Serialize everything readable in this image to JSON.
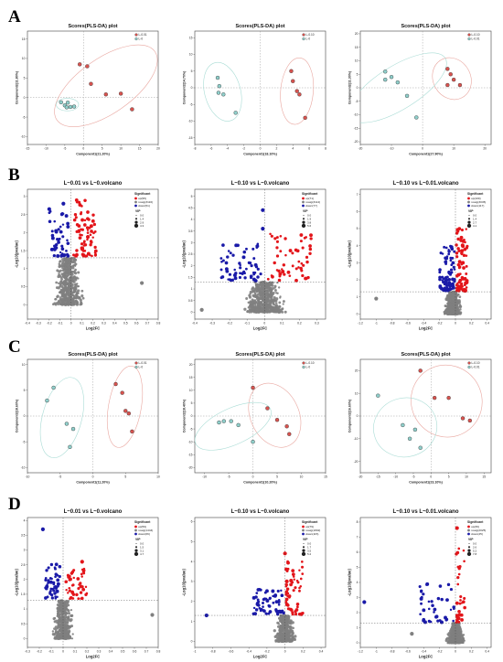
{
  "panel_letters": [
    "A",
    "B",
    "C",
    "D"
  ],
  "colors": {
    "red": "#d9534f",
    "teal": "#8fcfcb",
    "red_sig": "#e3151a",
    "blue_sig": "#1a1aa8",
    "gray": "#808080",
    "ellipse_red": "#e9a7a0",
    "ellipse_teal": "#a9dcd5"
  },
  "chart_data": [
    {
      "id": "A1",
      "type": "scatter",
      "title": "Scores(PLS-DA) plot",
      "xlabel": "Component1(21.20%)",
      "ylabel": "Component2(11.80%)",
      "xticks": [
        -15,
        -10,
        -5,
        0,
        5,
        10,
        15,
        20
      ],
      "yticks": [
        -10,
        -5,
        0,
        5,
        10,
        15
      ],
      "xlim": [
        -15,
        20
      ],
      "ylim": [
        -12,
        17
      ],
      "legend": [
        "L-0.01",
        "L-0"
      ],
      "legend_position": "top-right",
      "series": [
        {
          "name": "L-0.01",
          "color": "red",
          "points": [
            [
              -1,
              8.5
            ],
            [
              1,
              8
            ],
            [
              2,
              3.5
            ],
            [
              6,
              0.8
            ],
            [
              10,
              1
            ],
            [
              13,
              -3
            ]
          ],
          "ellipse": [
            6,
            3,
            16,
            7,
            -35
          ]
        },
        {
          "name": "L-0",
          "color": "teal",
          "points": [
            [
              -6,
              -1.2
            ],
            [
              -5,
              -2
            ],
            [
              -4.2,
              -1.3
            ],
            [
              -3.5,
              -2.4
            ],
            [
              -2.5,
              -2.3
            ],
            [
              -4.5,
              -2.5
            ]
          ],
          "ellipse": [
            -4.3,
            -1.8,
            3,
            1.6,
            0
          ]
        }
      ]
    },
    {
      "id": "A2",
      "type": "scatter",
      "title": "Scores(PLS-DA) plot",
      "xlabel": "Component1(18.10%)",
      "ylabel": "Component2(14.70%)",
      "xticks": [
        -8,
        -6,
        -4,
        -2,
        0,
        2,
        4,
        6,
        8
      ],
      "yticks": [
        -15,
        -10,
        -5,
        0,
        5,
        10,
        15
      ],
      "xlim": [
        -8,
        8
      ],
      "ylim": [
        -17,
        17
      ],
      "legend": [
        "L-0.10",
        "L-0"
      ],
      "legend_position": "top-right",
      "series": [
        {
          "name": "L-0.10",
          "color": "red",
          "points": [
            [
              3.8,
              5
            ],
            [
              4,
              2
            ],
            [
              4.5,
              -1
            ],
            [
              4.8,
              -2
            ],
            [
              5.5,
              -9
            ]
          ],
          "ellipse": [
            4.5,
            -1,
            2,
            10,
            5
          ]
        },
        {
          "name": "L-0",
          "color": "teal",
          "points": [
            [
              -5.2,
              3
            ],
            [
              -5,
              0.5
            ],
            [
              -5.1,
              -1.5
            ],
            [
              -4.5,
              -2
            ],
            [
              -3,
              -7.5
            ]
          ],
          "ellipse": [
            -4.6,
            -1.2,
            2.2,
            9,
            -15
          ]
        }
      ]
    },
    {
      "id": "A3",
      "type": "scatter",
      "title": "Scores(PLS-DA) plot",
      "xlabel": "Component1(27.90%)",
      "ylabel": "Component2(11.30%)",
      "xticks": [
        -20,
        -10,
        0,
        10,
        20
      ],
      "yticks": [
        -20,
        -15,
        -10,
        -5,
        0,
        5,
        10,
        15,
        20
      ],
      "xlim": [
        -20,
        22
      ],
      "ylim": [
        -21,
        21
      ],
      "legend": [
        "L-0.10",
        "L-0.01"
      ],
      "legend_position": "top-right",
      "series": [
        {
          "name": "L-0.10",
          "color": "red",
          "points": [
            [
              8,
              7
            ],
            [
              9,
              5
            ],
            [
              10,
              3
            ],
            [
              12,
              1
            ],
            [
              8,
              1
            ]
          ],
          "ellipse": [
            9.4,
            3.4,
            6,
            8,
            -30
          ]
        },
        {
          "name": "L-0.01",
          "color": "teal",
          "points": [
            [
              -12,
              6
            ],
            [
              -10,
              4
            ],
            [
              -8,
              2
            ],
            [
              -5,
              -3
            ],
            [
              -2,
              -11
            ],
            [
              -12,
              3
            ]
          ],
          "ellipse": [
            -8,
            0,
            18,
            8,
            -32
          ]
        }
      ]
    },
    {
      "id": "B1",
      "type": "scatter",
      "title": "L~0.01 vs L~0.volcano",
      "xlabel": "Log2FC",
      "ylabel": "-Log10(pvalue)",
      "xticks": [
        -0.4,
        -0.3,
        -0.2,
        -0.1,
        0,
        0.1,
        0.2,
        0.3,
        0.4,
        0.5,
        0.6,
        0.7,
        0.8
      ],
      "yticks": [
        0,
        0.5,
        1,
        1.5,
        2,
        2.5,
        3
      ],
      "xlim": [
        -0.4,
        0.8
      ],
      "ylim": [
        -0.4,
        3.2
      ],
      "hline": 1.3,
      "vline": 0,
      "legend_title": "Significant",
      "legend": [
        "up(95)",
        "nosig(3116)",
        "down(51)"
      ],
      "vip_title": "VIP",
      "vip": [
        "0.0",
        "1.4",
        "2.9",
        "4.3"
      ],
      "sig_up": {
        "n": 75,
        "x": [
          0.02,
          0.23
        ],
        "y": [
          1.35,
          2.9
        ]
      },
      "sig_down": {
        "n": 45,
        "x": [
          -0.2,
          -0.02
        ],
        "y": [
          1.35,
          2.6
        ]
      },
      "nonsig": {
        "n": 520,
        "x": [
          -0.25,
          0.2
        ],
        "ymax": 1.3
      },
      "outliers": [
        [
          0.65,
          0.6
        ],
        [
          -0.2,
          2.65
        ],
        [
          -0.07,
          2.8
        ]
      ]
    },
    {
      "id": "B2",
      "type": "scatter",
      "title": "L~0.10 vs L~0.volcano",
      "xlabel": "Log2FC",
      "ylabel": "-Log10(pvalue)",
      "xticks": [
        -0.4,
        -0.3,
        -0.2,
        -0.1,
        0,
        0.1,
        0.2,
        0.3
      ],
      "yticks": [
        0,
        0.5,
        1,
        1.5,
        2,
        2.5,
        3,
        3.5,
        4,
        4.5,
        5
      ],
      "xlim": [
        -0.4,
        0.35
      ],
      "ylim": [
        -0.3,
        5.3
      ],
      "hline": 1.3,
      "vline": 0,
      "legend_title": "Significant",
      "legend": [
        "up(71)",
        "nosig(3114)",
        "down(77)"
      ],
      "vip_title": "VIP",
      "vip": [
        "0.0",
        "1.9",
        "3.8",
        "5.6"
      ],
      "sig_up": {
        "n": 55,
        "x": [
          0.02,
          0.27
        ],
        "y": [
          1.35,
          3.4
        ]
      },
      "sig_down": {
        "n": 60,
        "x": [
          -0.25,
          -0.02
        ],
        "y": [
          1.35,
          3.0
        ]
      },
      "nonsig": {
        "n": 520,
        "x": [
          -0.2,
          0.2
        ],
        "ymax": 1.3
      },
      "outliers": [
        [
          -0.01,
          4.4
        ],
        [
          -0.01,
          3.6
        ],
        [
          -0.36,
          0.1
        ]
      ]
    },
    {
      "id": "B3",
      "type": "scatter",
      "title": "L~0.10 vs L~0.01.volcano",
      "xlabel": "Log2FC",
      "ylabel": "-Log10(pvalue)",
      "xticks": [
        -1.2,
        -1,
        -0.8,
        -0.6,
        -0.4,
        -0.2,
        0,
        0.2,
        0.4
      ],
      "yticks": [
        0,
        1,
        2,
        3,
        4,
        5,
        6,
        7
      ],
      "xlim": [
        -1.2,
        0.45
      ],
      "ylim": [
        -0.3,
        7.3
      ],
      "hline": 1.3,
      "vline": 0,
      "legend_title": "Significant",
      "legend": [
        "up(100)",
        "nosig(3045)",
        "down(117)"
      ],
      "vip_title": "VIP",
      "vip": [
        "0.0",
        "1.4",
        "2.7",
        "4.1"
      ],
      "sig_up": {
        "n": 75,
        "x": [
          0.01,
          0.15
        ],
        "y": [
          1.35,
          5.0
        ]
      },
      "sig_down": {
        "n": 80,
        "x": [
          -0.2,
          -0.01
        ],
        "y": [
          1.35,
          4.0
        ]
      },
      "nonsig": {
        "n": 520,
        "x": [
          -0.22,
          0.15
        ],
        "ymax": 1.3
      },
      "outliers": [
        [
          -1.0,
          0.9
        ]
      ]
    },
    {
      "id": "C1",
      "type": "scatter",
      "title": "Scores(PLS-DA) plot",
      "xlabel": "Component1(11.20%)",
      "ylabel": "Component2(18.60%)",
      "xticks": [
        -10,
        -5,
        0,
        5,
        10
      ],
      "yticks": [
        -10,
        -5,
        0,
        5,
        10
      ],
      "xlim": [
        -10,
        10
      ],
      "ylim": [
        -11,
        11
      ],
      "legend": [
        "L-0.01",
        "L-0"
      ],
      "legend_position": "top-right",
      "series": [
        {
          "name": "L-0.01",
          "color": "red",
          "points": [
            [
              3.5,
              6.2
            ],
            [
              4.5,
              4.5
            ],
            [
              5,
              1
            ],
            [
              5.5,
              0.5
            ],
            [
              6,
              -3
            ]
          ],
          "ellipse": [
            4.9,
            1.8,
            2.5,
            8,
            10
          ]
        },
        {
          "name": "L-0",
          "color": "teal",
          "points": [
            [
              -6,
              5.5
            ],
            [
              -7,
              3
            ],
            [
              -4,
              -1.5
            ],
            [
              -3,
              -2.5
            ],
            [
              -3.5,
              -6
            ]
          ],
          "ellipse": [
            -4.7,
            -0.3,
            3,
            8,
            15
          ]
        }
      ]
    },
    {
      "id": "C2",
      "type": "scatter",
      "title": "Scores(PLS-DA) plot",
      "xlabel": "Component1(10.20%)",
      "ylabel": "Component2(18.40%)",
      "xticks": [
        -10,
        -5,
        0,
        5,
        10,
        15
      ],
      "yticks": [
        -20,
        -15,
        -10,
        -5,
        0,
        5,
        10,
        15,
        20
      ],
      "xlim": [
        -12,
        15
      ],
      "ylim": [
        -22,
        22
      ],
      "legend": [
        "L-0.10",
        "L-0"
      ],
      "legend_position": "top-right",
      "series": [
        {
          "name": "L-0.10",
          "color": "red",
          "points": [
            [
              0,
              11
            ],
            [
              3,
              3
            ],
            [
              5,
              -1.5
            ],
            [
              7,
              -4
            ],
            [
              7.5,
              -7
            ]
          ],
          "ellipse": [
            4.5,
            0.3,
            5,
            13,
            -25
          ]
        },
        {
          "name": "L-0",
          "color": "teal",
          "points": [
            [
              -7,
              -2.5
            ],
            [
              -6,
              -2
            ],
            [
              -4.5,
              -2
            ],
            [
              -3,
              -3.5
            ],
            [
              0,
              -10
            ]
          ],
          "ellipse": [
            -4.1,
            -4,
            8.5,
            7,
            -25
          ]
        }
      ]
    },
    {
      "id": "C3",
      "type": "scatter",
      "title": "Scores(PLS-DA) plot",
      "xlabel": "Component1(23.10%)",
      "ylabel": "Component2(16.60%)",
      "xticks": [
        -20,
        -15,
        -10,
        -5,
        0,
        5,
        10,
        15
      ],
      "yticks": [
        -20,
        -10,
        0,
        10,
        20
      ],
      "xlim": [
        -20,
        17
      ],
      "ylim": [
        -25,
        25
      ],
      "legend": [
        "L-0.10",
        "L-0.01"
      ],
      "legend_position": "top-right",
      "series": [
        {
          "name": "L-0.10",
          "color": "red",
          "points": [
            [
              -3,
              20
            ],
            [
              1,
              8
            ],
            [
              5,
              8
            ],
            [
              9,
              -1
            ],
            [
              11,
              -2
            ]
          ],
          "ellipse": [
            4.4,
            6.6,
            10,
            16,
            -30
          ]
        },
        {
          "name": "L-0.01",
          "color": "teal",
          "points": [
            [
              -15,
              9
            ],
            [
              -8,
              -4
            ],
            [
              -4.5,
              -6
            ],
            [
              -6,
              -10
            ],
            [
              -3,
              -14
            ]
          ],
          "ellipse": [
            -7.3,
            -5,
            9,
            13,
            -15
          ]
        }
      ]
    },
    {
      "id": "D1",
      "type": "scatter",
      "title": "L~0.01 vs L~0.volcano",
      "xlabel": "Log2FC",
      "ylabel": "-Log10(pvalue)",
      "xticks": [
        -0.3,
        -0.2,
        -0.1,
        0,
        0.1,
        0.2,
        0.3,
        0.4,
        0.5,
        0.6,
        0.7,
        0.8
      ],
      "yticks": [
        0,
        0.5,
        1,
        1.5,
        2,
        2.5,
        3,
        3.5,
        4
      ],
      "xlim": [
        -0.3,
        0.8
      ],
      "ylim": [
        -0.3,
        4.1
      ],
      "hline": 1.3,
      "vline": 0,
      "legend_title": "Significant",
      "legend": [
        "up(59)",
        "nosig(1444)",
        "down(66)"
      ],
      "vip_title": "VIP",
      "vip": [
        "0.0",
        "1.5",
        "3.1",
        "4.7"
      ],
      "sig_up": {
        "n": 45,
        "x": [
          0.02,
          0.2
        ],
        "y": [
          1.35,
          2.4
        ]
      },
      "sig_down": {
        "n": 50,
        "x": [
          -0.15,
          -0.02
        ],
        "y": [
          1.35,
          2.6
        ]
      },
      "nonsig": {
        "n": 420,
        "x": [
          -0.15,
          0.15
        ],
        "ymax": 1.3
      },
      "outliers": [
        [
          -0.17,
          3.7
        ],
        [
          0.16,
          2.6
        ],
        [
          0.75,
          0.8
        ]
      ]
    },
    {
      "id": "D2",
      "type": "scatter",
      "title": "L~0.10 vs L~0.volcano",
      "xlabel": "Log2FC",
      "ylabel": "-Log10(pvalue)",
      "xticks": [
        -1,
        -0.8,
        -0.6,
        -0.4,
        -0.2,
        0,
        0.2,
        0.4
      ],
      "yticks": [
        0,
        1,
        2,
        3,
        4,
        5,
        6
      ],
      "xlim": [
        -1.0,
        0.45
      ],
      "ylim": [
        -0.3,
        6.2
      ],
      "hline": 1.3,
      "vline": 0,
      "legend_title": "Significant",
      "legend": [
        "up(79)",
        "nosig(1802)",
        "down(115)"
      ],
      "vip_title": "VIP",
      "vip": [
        "0.0",
        "1.7",
        "3.5",
        "5.2"
      ],
      "sig_up": {
        "n": 55,
        "x": [
          0.01,
          0.2
        ],
        "y": [
          1.35,
          4.0
        ]
      },
      "sig_down": {
        "n": 60,
        "x": [
          -0.35,
          -0.01
        ],
        "y": [
          1.35,
          2.6
        ]
      },
      "nonsig": {
        "n": 420,
        "x": [
          -0.2,
          0.2
        ],
        "ymax": 1.3
      },
      "outliers": [
        [
          -0.87,
          1.3
        ],
        [
          0,
          4.4
        ],
        [
          0.02,
          3.0
        ]
      ]
    },
    {
      "id": "D3",
      "type": "scatter",
      "title": "L~0.10 vs L~0.01.volcano",
      "xlabel": "Log2FC",
      "ylabel": "-Log10(pvalue)",
      "xticks": [
        -1.2,
        -1,
        -0.8,
        -0.6,
        -0.4,
        -0.2,
        0,
        0.2,
        0.4
      ],
      "yticks": [
        0,
        1,
        2,
        3,
        4,
        5,
        6,
        7,
        8
      ],
      "xlim": [
        -1.2,
        0.45
      ],
      "ylim": [
        -0.3,
        8.3
      ],
      "hline": 1.3,
      "vline": 0,
      "legend_title": "Significant",
      "legend": [
        "up(36)",
        "nosig(2025)",
        "down(45)"
      ],
      "vip_title": "VIP",
      "vip": [
        "0.0",
        "2.6",
        "5.2",
        "7.8"
      ],
      "sig_up": {
        "n": 30,
        "x": [
          0.01,
          0.12
        ],
        "y": [
          1.35,
          6.5
        ]
      },
      "sig_down": {
        "n": 40,
        "x": [
          -0.45,
          -0.01
        ],
        "y": [
          1.35,
          4.0
        ]
      },
      "nonsig": {
        "n": 420,
        "x": [
          -0.2,
          0.2
        ],
        "ymax": 1.3
      },
      "outliers": [
        [
          -1.15,
          2.7
        ],
        [
          0.02,
          7.6
        ],
        [
          -0.55,
          0.6
        ]
      ]
    }
  ]
}
